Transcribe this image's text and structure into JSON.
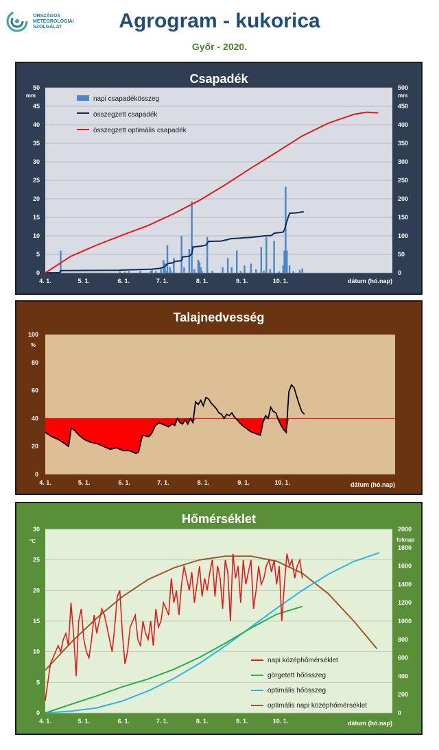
{
  "page": {
    "title": "Agrogram - kukorica",
    "subtitle": "Győr - 2020.",
    "logo_lines": [
      "ORSZÁGOS",
      "METEOROLÓGIAI",
      "SZOLGÁLAT"
    ]
  },
  "colors": {
    "panel1_bg": "#2f3e52",
    "panel1_plot": "#d9dde3",
    "panel2_bg": "#6b3410",
    "panel2_plot": "#dcbf95",
    "panel3_bg": "#5a8f3a",
    "panel3_plot": "#e4efd8"
  },
  "chart_data": [
    {
      "type": "bar",
      "title": "Csapadék",
      "ylabel_left": "mm",
      "ylabel_right": "mm",
      "xlabel": "dátum (hó.nap)",
      "x_ticks": [
        "4. 1.",
        "5. 1.",
        "6. 1.",
        "7. 1.",
        "8. 1.",
        "9. 1.",
        "10. 1."
      ],
      "ylim_left": [
        0,
        50
      ],
      "ylim_right": [
        0,
        500
      ],
      "yticks_left": [
        0,
        5,
        10,
        15,
        20,
        25,
        30,
        35,
        40,
        45,
        50
      ],
      "yticks_right": [
        0,
        50,
        100,
        150,
        200,
        250,
        300,
        350,
        400,
        450,
        500
      ],
      "legend": [
        "napi csapadékösszeg",
        "összegzett csapadék",
        "összegzett optimális csapadék"
      ],
      "series": [
        {
          "name": "napi csapadékösszeg",
          "axis": "left",
          "color": "#4a86c8",
          "x": [
            12,
            58,
            62,
            65,
            74,
            82,
            83,
            86,
            90,
            92,
            93,
            94,
            95,
            97,
            98,
            100,
            106,
            108,
            112,
            114,
            116,
            119,
            120,
            121,
            122,
            126,
            130,
            138,
            142,
            145,
            149,
            152,
            155,
            160,
            164,
            168,
            170,
            172,
            175,
            178,
            182,
            185,
            186,
            187,
            188,
            190,
            193,
            198,
            200
          ],
          "values": [
            6,
            0.4,
            0.3,
            0.5,
            0.6,
            0.5,
            0.8,
            0.5,
            1,
            3.5,
            2.6,
            0.5,
            7.5,
            1.5,
            0.5,
            4,
            10,
            1.5,
            6.5,
            19.3,
            1,
            3.5,
            3,
            1.5,
            0.5,
            9.7,
            0.6,
            1.5,
            4,
            1.5,
            6,
            0.5,
            2,
            2.5,
            1,
            7,
            0.6,
            9.6,
            1,
            8.6,
            0.4,
            2,
            6,
            23.3,
            6,
            2,
            0.5,
            0.8,
            1.2
          ]
        },
        {
          "name": "összegzett csapadék",
          "axis": "right",
          "color": "#0f2a5a",
          "x": [
            0,
            11,
            12,
            57,
            63,
            74,
            83,
            89,
            91,
            93,
            95,
            99,
            101,
            106,
            107,
            112,
            114,
            115,
            121,
            125,
            127,
            137,
            142,
            144,
            148,
            152,
            155,
            160,
            163,
            166,
            168,
            171,
            176,
            178,
            185,
            186,
            188,
            190,
            195,
            201
          ],
          "values": [
            0,
            0,
            6,
            7,
            8,
            9,
            10,
            12,
            14,
            17,
            25,
            27,
            31,
            33,
            43,
            45,
            51,
            70,
            72,
            75,
            85,
            86,
            90,
            92,
            93,
            94,
            95,
            96,
            97,
            98,
            99,
            100,
            101,
            107,
            110,
            116,
            140,
            161,
            162,
            165
          ]
        },
        {
          "name": "összegzett optimális csapadék",
          "axis": "right",
          "color": "#e41a1a",
          "x": [
            0,
            20,
            40,
            60,
            80,
            100,
            120,
            140,
            160,
            180,
            200,
            220,
            240,
            250,
            259
          ],
          "values": [
            0,
            45,
            75,
            102,
            128,
            160,
            196,
            238,
            283,
            326,
            370,
            404,
            428,
            434,
            432
          ]
        }
      ]
    },
    {
      "type": "area",
      "title": "Talajnedvesség",
      "ylabel": "%",
      "xlabel": "dátum (hó.nap)",
      "x_ticks": [
        "4. 1.",
        "5. 1.",
        "6. 1.",
        "7. 1.",
        "8. 1.",
        "9. 1.",
        "10. 1."
      ],
      "ylim": [
        0,
        100
      ],
      "yticks": [
        0,
        20,
        40,
        60,
        80,
        100
      ],
      "threshold": 40,
      "series": [
        {
          "name": "",
          "color": "#000000",
          "x": [
            0,
            5,
            10,
            15,
            18,
            20,
            22,
            26,
            30,
            35,
            40,
            45,
            50,
            55,
            60,
            65,
            70,
            72,
            75,
            80,
            82,
            85,
            88,
            90,
            93,
            95,
            98,
            100,
            102,
            104,
            106,
            108,
            110,
            112,
            114,
            116,
            118,
            120,
            122,
            124,
            126,
            128,
            130,
            132,
            134,
            136,
            138,
            140,
            142,
            144,
            146,
            148,
            150,
            152,
            155,
            158,
            160,
            163,
            166,
            168,
            170,
            172,
            174,
            176,
            178,
            180,
            182,
            184,
            186,
            188,
            190,
            192,
            194,
            196,
            198,
            200
          ],
          "values": [
            30,
            27,
            25,
            22,
            20,
            33,
            32,
            28,
            25,
            23,
            22,
            20,
            18,
            19,
            17,
            17,
            15,
            16,
            28,
            27,
            29,
            35,
            37,
            36,
            35,
            34,
            36,
            35,
            40,
            37,
            36,
            39,
            36,
            40,
            37,
            52,
            50,
            53,
            49,
            55,
            54,
            51,
            49,
            47,
            44,
            43,
            40,
            43,
            42,
            44,
            41,
            39,
            37,
            35,
            33,
            31,
            30,
            29,
            28,
            37,
            42,
            40,
            48,
            45,
            44,
            39,
            35,
            32,
            30,
            59,
            64,
            62,
            56,
            50,
            45,
            43
          ]
        }
      ]
    },
    {
      "type": "line",
      "title": "Hőmérséklet",
      "ylabel_left": "°C",
      "ylabel_right": "foknap",
      "xlabel": "dátum (hó.nap)",
      "x_ticks": [
        "4. 1.",
        "5. 1.",
        "6. 1.",
        "7. 1.",
        "8. 1.",
        "9. 1.",
        "10. 1."
      ],
      "ylim_left": [
        0,
        30
      ],
      "ylim_right": [
        0,
        2000
      ],
      "yticks_left": [
        0,
        5,
        10,
        15,
        20,
        25,
        30
      ],
      "yticks_right": [
        0,
        200,
        400,
        600,
        800,
        1000,
        1200,
        1400,
        1600,
        1800,
        2000
      ],
      "legend": [
        "napi középhőmérséklet",
        "görgetett hőösszeg",
        "optimális hőösszeg",
        "optimális napi középhőmérséklet"
      ],
      "series": [
        {
          "name": "napi középhőmérséklet",
          "axis": "left",
          "color": "#e41a1a",
          "x": [
            0,
            2,
            4,
            6,
            8,
            10,
            12,
            14,
            16,
            18,
            20,
            22,
            24,
            26,
            28,
            30,
            32,
            34,
            36,
            38,
            40,
            42,
            44,
            46,
            48,
            50,
            52,
            54,
            56,
            58,
            60,
            62,
            64,
            66,
            68,
            70,
            72,
            74,
            76,
            78,
            80,
            82,
            84,
            86,
            88,
            90,
            92,
            94,
            96,
            98,
            100,
            102,
            104,
            106,
            108,
            110,
            112,
            114,
            116,
            118,
            120,
            122,
            124,
            126,
            128,
            130,
            132,
            134,
            136,
            138,
            140,
            142,
            144,
            146,
            148,
            150,
            152,
            154,
            156,
            158,
            160,
            162,
            164,
            166,
            168,
            170,
            172,
            174,
            176,
            178,
            180,
            182,
            184,
            186,
            188,
            190,
            192,
            194,
            196,
            198,
            200
          ],
          "values": [
            2,
            5,
            8,
            9,
            10,
            11,
            10,
            12,
            13,
            11,
            18,
            13,
            6,
            15,
            17,
            12,
            10,
            9,
            12,
            16,
            13,
            15,
            17,
            16,
            14,
            12,
            10,
            14,
            19,
            20,
            13,
            8,
            10,
            14,
            15,
            16,
            12,
            11,
            15,
            13,
            12,
            15,
            11,
            17,
            14,
            15,
            18,
            17,
            16,
            22,
            18,
            20,
            16,
            21,
            24,
            22,
            20,
            23,
            18,
            21,
            24,
            19,
            22,
            20,
            23,
            25,
            19,
            24,
            22,
            17,
            25,
            23,
            15,
            26,
            22,
            24,
            18,
            25,
            21,
            23,
            25,
            17,
            20,
            24,
            21,
            22,
            24,
            25,
            23,
            25,
            21,
            24,
            15,
            21,
            26,
            24,
            25,
            22,
            24,
            25,
            22
          ]
        },
        {
          "name": "görgetett hőösszeg",
          "axis": "right",
          "color": "#22b14c",
          "x": [
            0,
            20,
            40,
            60,
            80,
            100,
            120,
            140,
            160,
            180,
            200
          ],
          "values": [
            0,
            95,
            185,
            285,
            370,
            475,
            605,
            760,
            925,
            1075,
            1160
          ]
        },
        {
          "name": "optimális hőösszeg",
          "axis": "right",
          "color": "#27b7e6",
          "x": [
            0,
            20,
            40,
            60,
            80,
            100,
            120,
            140,
            160,
            180,
            200,
            220,
            240,
            260
          ],
          "values": [
            0,
            20,
            55,
            130,
            240,
            375,
            540,
            730,
            935,
            1140,
            1335,
            1510,
            1650,
            1745
          ]
        },
        {
          "name": "optimális napi középhőmérséklet",
          "axis": "left",
          "color": "#9a5b2a",
          "x": [
            0,
            20,
            40,
            60,
            80,
            100,
            120,
            140,
            160,
            180,
            200,
            220,
            240,
            258
          ],
          "values": [
            7,
            11.5,
            15.5,
            19,
            21.8,
            23.7,
            25,
            25.6,
            25.6,
            24.8,
            22.8,
            19.5,
            15,
            10.5
          ]
        }
      ]
    }
  ]
}
